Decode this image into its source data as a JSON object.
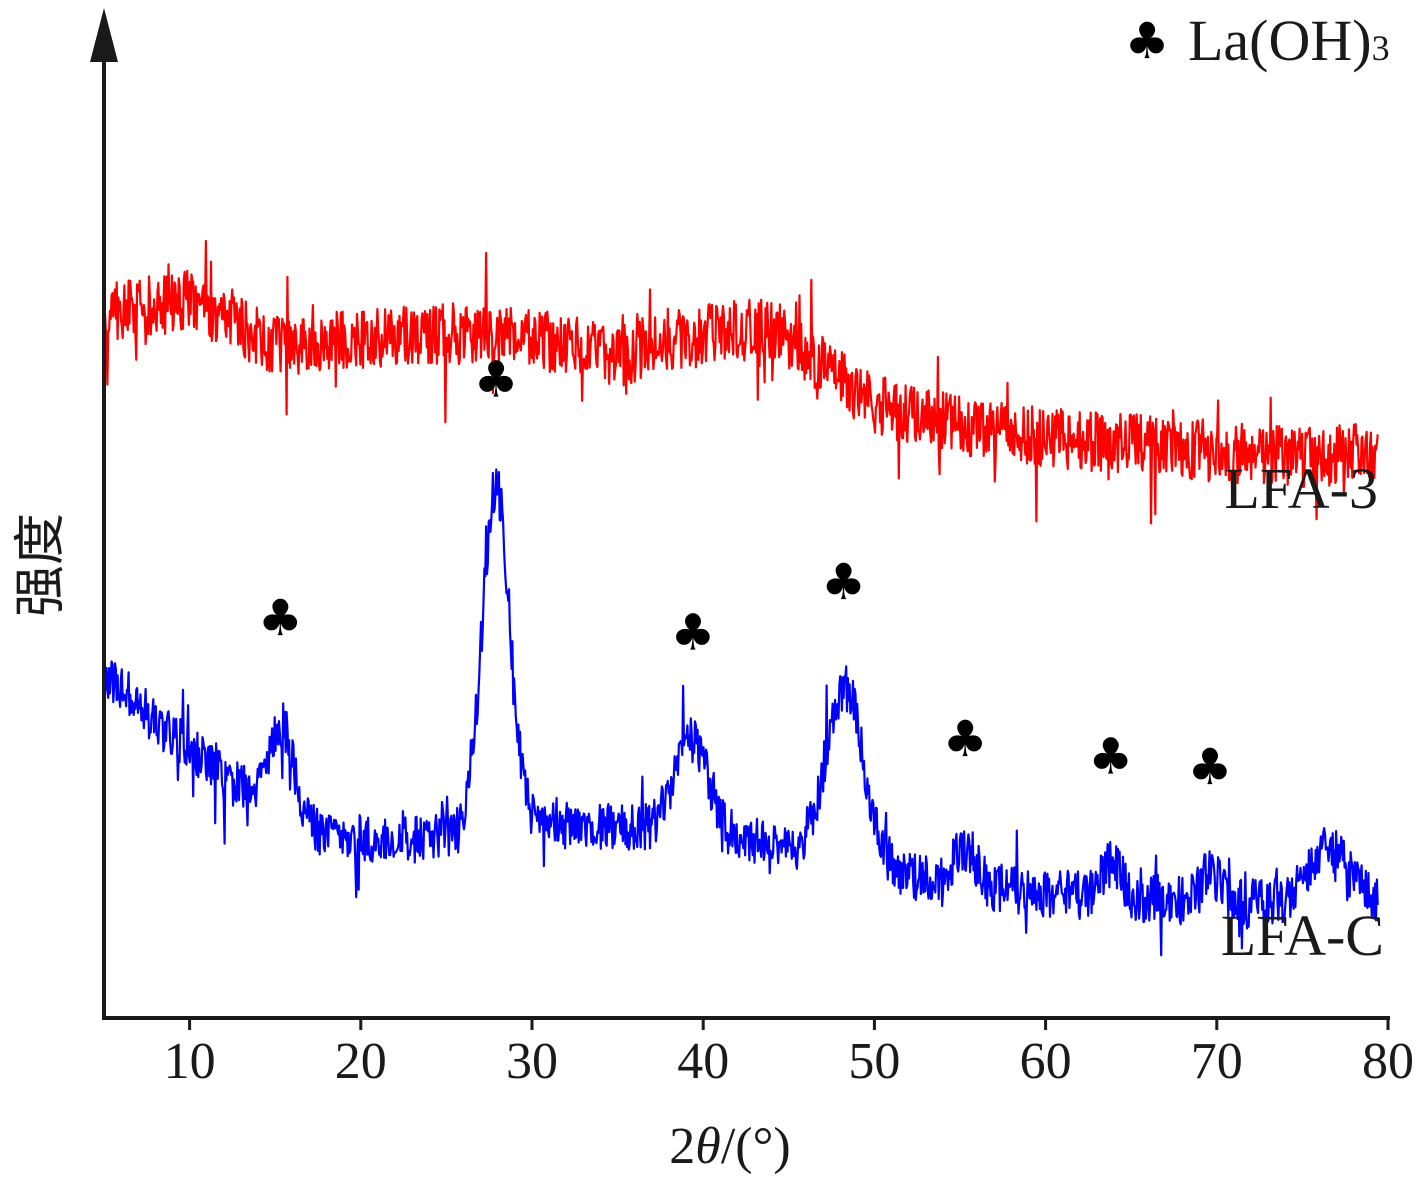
{
  "chart_data": {
    "type": "line",
    "xlabel_prefix": "2",
    "xlabel_theta": "θ",
    "xlabel_suffix": "/(°)",
    "ylabel": "强度",
    "xlim": [
      5,
      80
    ],
    "xticks": [
      10,
      20,
      30,
      40,
      50,
      60,
      70,
      80
    ],
    "legend": {
      "symbol": "♣",
      "label_main": "La(OH)",
      "label_sub": "3",
      "position": "top-right"
    },
    "series": [
      {
        "name": "LFA-3",
        "color": "#ff0000",
        "noise": 38,
        "peaks": [],
        "baseline": [
          [
            5,
            0.735
          ],
          [
            10,
            0.75
          ],
          [
            15,
            0.7
          ],
          [
            20,
            0.71
          ],
          [
            25,
            0.715
          ],
          [
            30,
            0.71
          ],
          [
            35,
            0.69
          ],
          [
            40,
            0.715
          ],
          [
            44,
            0.72
          ],
          [
            47,
            0.68
          ],
          [
            50,
            0.64
          ],
          [
            55,
            0.62
          ],
          [
            60,
            0.605
          ],
          [
            65,
            0.6
          ],
          [
            70,
            0.59
          ],
          [
            75,
            0.585
          ],
          [
            79.4,
            0.59
          ]
        ]
      },
      {
        "name": "LFA-C",
        "color": "#0000ff",
        "noise": 30,
        "peaks": [
          [
            15.4,
            0.09,
            0.7
          ],
          [
            27.9,
            0.36,
            0.8
          ],
          [
            39.3,
            0.1,
            1.0
          ],
          [
            48.3,
            0.18,
            1.1
          ],
          [
            55.3,
            0.04,
            0.6
          ],
          [
            63.8,
            0.035,
            0.6
          ],
          [
            69.6,
            0.03,
            0.6
          ],
          [
            76.5,
            0.055,
            1.2
          ]
        ],
        "baseline": [
          [
            5,
            0.36
          ],
          [
            8,
            0.31
          ],
          [
            12,
            0.25
          ],
          [
            15,
            0.22
          ],
          [
            18,
            0.19
          ],
          [
            22,
            0.185
          ],
          [
            26,
            0.19
          ],
          [
            30,
            0.2
          ],
          [
            35,
            0.2
          ],
          [
            40,
            0.19
          ],
          [
            45,
            0.18
          ],
          [
            50,
            0.155
          ],
          [
            55,
            0.14
          ],
          [
            60,
            0.13
          ],
          [
            65,
            0.125
          ],
          [
            70,
            0.12
          ],
          [
            75,
            0.12
          ],
          [
            79.4,
            0.12
          ]
        ]
      }
    ],
    "peak_markers": [
      15.3,
      27.9,
      39.4,
      48.2,
      55.3,
      63.8,
      69.6
    ],
    "grid": false
  }
}
